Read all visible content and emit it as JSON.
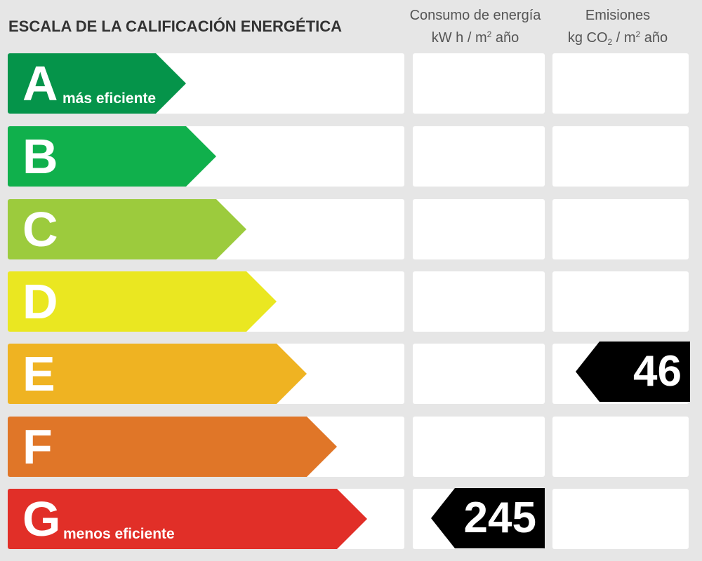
{
  "title": "ESCALA DE LA CALIFICACIÓN ENERGÉTICA",
  "columns": {
    "energy": {
      "line1": "Consumo de energía",
      "unit_pre": "kW h  / m",
      "unit_sup": "2",
      "unit_post": " año"
    },
    "emissions": {
      "line1": "Emisiones",
      "unit_pre": "kg CO",
      "unit_sub": "2",
      "unit_mid": "  / m",
      "unit_sup": "2",
      "unit_post": " año"
    }
  },
  "ratings": [
    {
      "letter": "A",
      "label": "más eficiente",
      "color": "#05944a"
    },
    {
      "letter": "B",
      "label": "",
      "color": "#10b04c"
    },
    {
      "letter": "C",
      "label": "",
      "color": "#9ccb3d"
    },
    {
      "letter": "D",
      "label": "",
      "color": "#eae721"
    },
    {
      "letter": "E",
      "label": "",
      "color": "#efb322"
    },
    {
      "letter": "F",
      "label": "",
      "color": "#e07628"
    },
    {
      "letter": "G",
      "label": "menos eficiente",
      "color": "#e12f28"
    }
  ],
  "energy_consumption": {
    "value": "245",
    "rating": "G"
  },
  "emissions": {
    "value": "46",
    "rating": "E"
  },
  "pointer_color": "#000000"
}
